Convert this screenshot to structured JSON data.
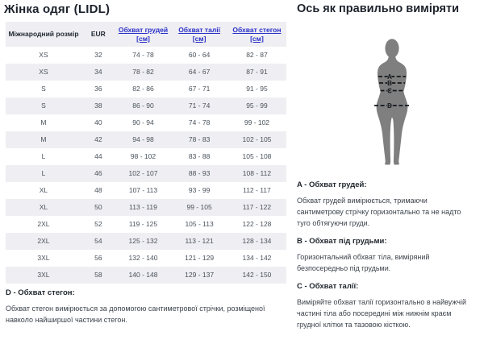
{
  "left": {
    "title": "Жінка одяг (LIDL)",
    "table": {
      "headers": [
        {
          "label": "Міжнародний розмір",
          "link": false
        },
        {
          "label": "EUR",
          "link": false
        },
        {
          "label": "Обхват грудей",
          "unit": "[см]",
          "link": true
        },
        {
          "label": "Обхват талії",
          "unit": "[см]",
          "link": true
        },
        {
          "label": "Обхват стегон",
          "unit": "[см]",
          "link": true
        }
      ],
      "rows": [
        [
          "XS",
          "32",
          "74 - 78",
          "60 - 64",
          "82 - 87"
        ],
        [
          "XS",
          "34",
          "78 - 82",
          "64 - 67",
          "87 - 91"
        ],
        [
          "S",
          "36",
          "82 - 86",
          "67 - 71",
          "91 - 95"
        ],
        [
          "S",
          "38",
          "86 - 90",
          "71 - 74",
          "95 - 99"
        ],
        [
          "M",
          "40",
          "90 - 94",
          "74 - 78",
          "99 - 102"
        ],
        [
          "M",
          "42",
          "94 - 98",
          "78 - 83",
          "102 - 105"
        ],
        [
          "L",
          "44",
          "98 - 102",
          "83 - 88",
          "105 - 108"
        ],
        [
          "L",
          "46",
          "102 - 107",
          "88 - 93",
          "108 - 112"
        ],
        [
          "XL",
          "48",
          "107 - 113",
          "93 - 99",
          "112 - 117"
        ],
        [
          "XL",
          "50",
          "113 - 119",
          "99 - 105",
          "117 - 122"
        ],
        [
          "2XL",
          "52",
          "119 - 125",
          "105 - 113",
          "122 - 128"
        ],
        [
          "2XL",
          "54",
          "125 - 132",
          "113 - 121",
          "128 - 134"
        ],
        [
          "3XL",
          "56",
          "132 - 140",
          "121 - 129",
          "134 - 142"
        ],
        [
          "3XL",
          "58",
          "140 - 148",
          "129 - 137",
          "142 - 150"
        ]
      ]
    },
    "note_d": {
      "heading": "D - Обхват стегон:",
      "text": "Обхват стегон вимірюється за допомогою сантиметрової стрічки, розміщеної навколо найширшої частини стегон."
    }
  },
  "right": {
    "title": "Ось як правильно виміряти",
    "figure_labels": [
      "A",
      "B",
      "C",
      "D"
    ],
    "sections": [
      {
        "heading": "A - Обхват грудей:",
        "text": "Обхват грудей вимірюється, тримаючи сантиметрову стрічку горизонтально та не надто туго обтягуючи груди."
      },
      {
        "heading": "B - Обхват під грудьми:",
        "text": "Горизонтальний обхват тіла, виміряний безпосередньо під грудьми."
      },
      {
        "heading": "C - Обхват талії:",
        "text": "Виміряйте обхват талії горизонтально в найвужчій частині тіла або посередині між нижнім краєм грудної клітки та тазовою кісткою."
      }
    ]
  },
  "colors": {
    "link_blue": "#2a31c8",
    "stripe_gray": "#efeef2",
    "silhouette_gray": "#7f7f7f"
  }
}
